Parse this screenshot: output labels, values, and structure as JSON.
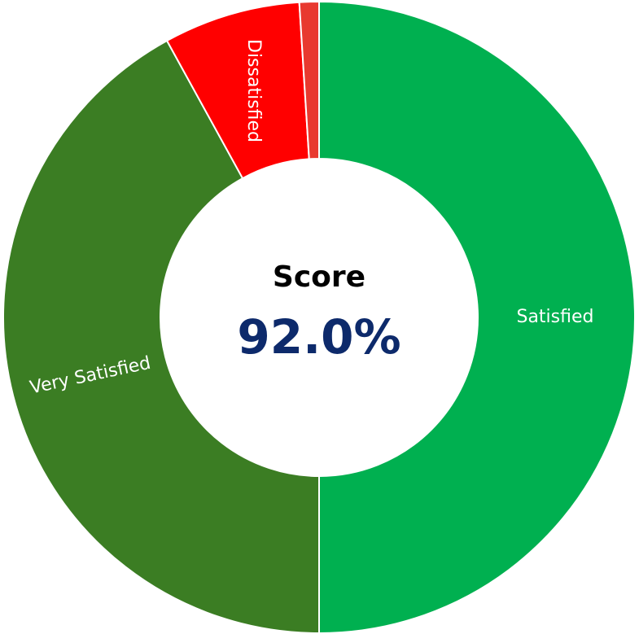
{
  "chart_data": {
    "type": "donut",
    "categories": [
      "Satisfied",
      "Very Satisfied",
      "Dissatisfied",
      null
    ],
    "values": [
      50,
      42,
      7,
      1
    ],
    "colors": [
      "#00b050",
      "#3b7d23",
      "#ff0000",
      "#e8392f"
    ],
    "center_title": "Score",
    "center_value": "92.0%"
  }
}
